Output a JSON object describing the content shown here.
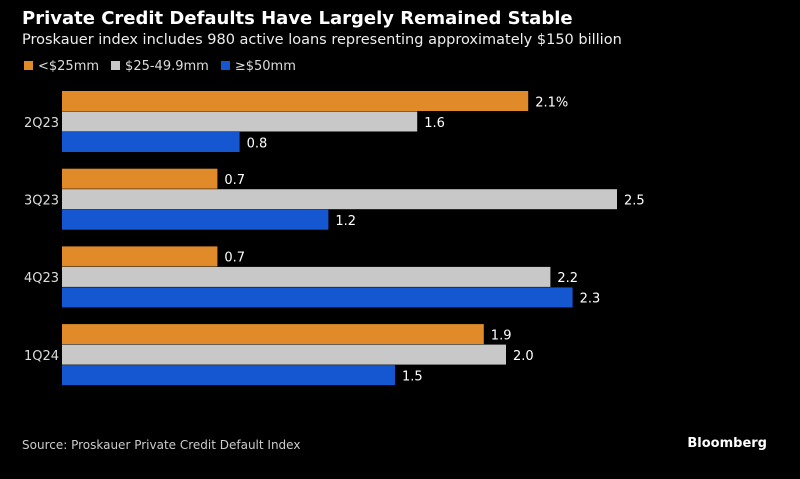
{
  "title": "Private Credit Defaults Have Largely Remained Stable",
  "subtitle": "Proskauer index includes 980 active loans representing approximately $150 billion",
  "source": "Source: Proskauer Private Credit Default Index",
  "brand": "Bloomberg",
  "chart_data": {
    "type": "bar",
    "orientation": "horizontal",
    "categories": [
      "2Q23",
      "3Q23",
      "4Q23",
      "1Q24"
    ],
    "series": [
      {
        "name": "<$25mm",
        "color": "#e08a2a",
        "values": [
          2.1,
          0.7,
          0.7,
          1.9
        ]
      },
      {
        "name": "$25-49.9mm",
        "color": "#c8c8c8",
        "values": [
          1.6,
          2.5,
          2.2,
          2.0
        ]
      },
      {
        "name": "≥$50mm",
        "color": "#1557d0",
        "values": [
          0.8,
          1.2,
          2.3,
          1.5
        ]
      }
    ],
    "labels": [
      [
        "2.1%",
        "0.7",
        "0.7",
        "1.9"
      ],
      [
        "1.6",
        "2.5",
        "2.2",
        "2.0"
      ],
      [
        "0.8",
        "1.2",
        "2.3",
        "1.5"
      ]
    ],
    "xlim": [
      0,
      2.5
    ],
    "grid": false,
    "legend": "top-left"
  }
}
